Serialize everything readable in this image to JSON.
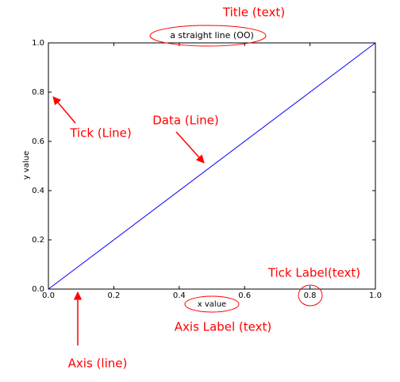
{
  "chart_data": {
    "type": "line",
    "title": "a straight line (OO)",
    "x_label": "x value",
    "y_label": "y value",
    "x": [
      0,
      1
    ],
    "series": [
      {
        "color": "#0000ff",
        "values": [
          0,
          1
        ]
      }
    ],
    "xlim": [
      0,
      1
    ],
    "ylim": [
      0,
      1
    ],
    "xticks": [
      {
        "value": 0,
        "label": "0.0"
      },
      0.2,
      0.4,
      0.6,
      0.8,
      {
        "value": 1,
        "label": "1.0"
      }
    ],
    "yticks": [
      {
        "value": 0,
        "label": "0.0"
      },
      0.2,
      0.4,
      0.6,
      0.8,
      {
        "value": 1,
        "label": "1.0"
      }
    ],
    "grid": false,
    "annotation_color": "#ff0000",
    "annotations": [
      {
        "text": "Title (text)"
      },
      {
        "text": "Tick (Line)"
      },
      {
        "text": "Data (Line)"
      },
      {
        "text": "Tick Label(text)"
      },
      {
        "text": "Axis Label (text)"
      },
      {
        "text": "Axis (line)"
      }
    ]
  }
}
